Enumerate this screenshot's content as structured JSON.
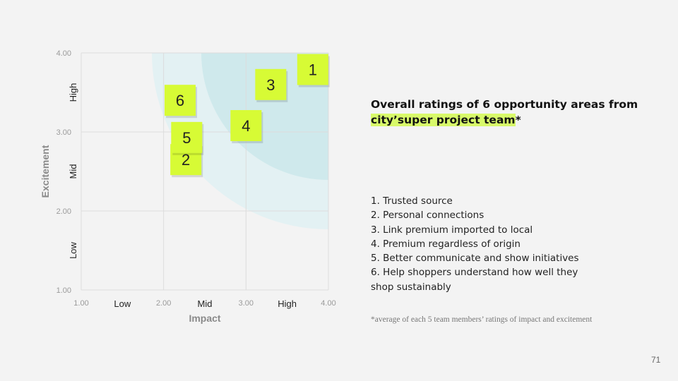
{
  "chart_data": {
    "type": "scatter",
    "xlabel": "Impact",
    "ylabel": "Excitement",
    "xlim": [
      1,
      4
    ],
    "ylim": [
      1,
      4
    ],
    "x_ticks": [
      "1.00",
      "2.00",
      "3.00",
      "4.00"
    ],
    "y_ticks": [
      "1.00",
      "2.00",
      "3.00",
      "4.00"
    ],
    "x_levels": [
      "Low",
      "Mid",
      "High"
    ],
    "y_levels": [
      "Low",
      "Mid",
      "High"
    ],
    "grid": true,
    "points": [
      {
        "label": "1",
        "x": 3.81,
        "y": 3.79
      },
      {
        "label": "2",
        "x": 2.27,
        "y": 2.65
      },
      {
        "label": "3",
        "x": 3.3,
        "y": 3.6
      },
      {
        "label": "4",
        "x": 3.0,
        "y": 3.08
      },
      {
        "label": "5",
        "x": 2.28,
        "y": 2.93
      },
      {
        "label": "6",
        "x": 2.2,
        "y": 3.4
      }
    ],
    "colors": {
      "note": "#d7fb35",
      "zone": "#cfe9ec",
      "grid": "#dcdcdc"
    }
  },
  "heading": {
    "line1": "Overall ratings of 6 opportunity areas from",
    "highlight": "city’super project team",
    "suffix": "*"
  },
  "list": [
    "1. Trusted source",
    "2. Personal connections",
    "3. Link premium imported to local",
    "4. Premium regardless of origin",
    "5. Better communicate and show initiatives",
    "6. Help shoppers understand how well they shop sustainably"
  ],
  "footnote": "*average of each 5 team members’ ratings of impact and excitement",
  "page_number": "71"
}
